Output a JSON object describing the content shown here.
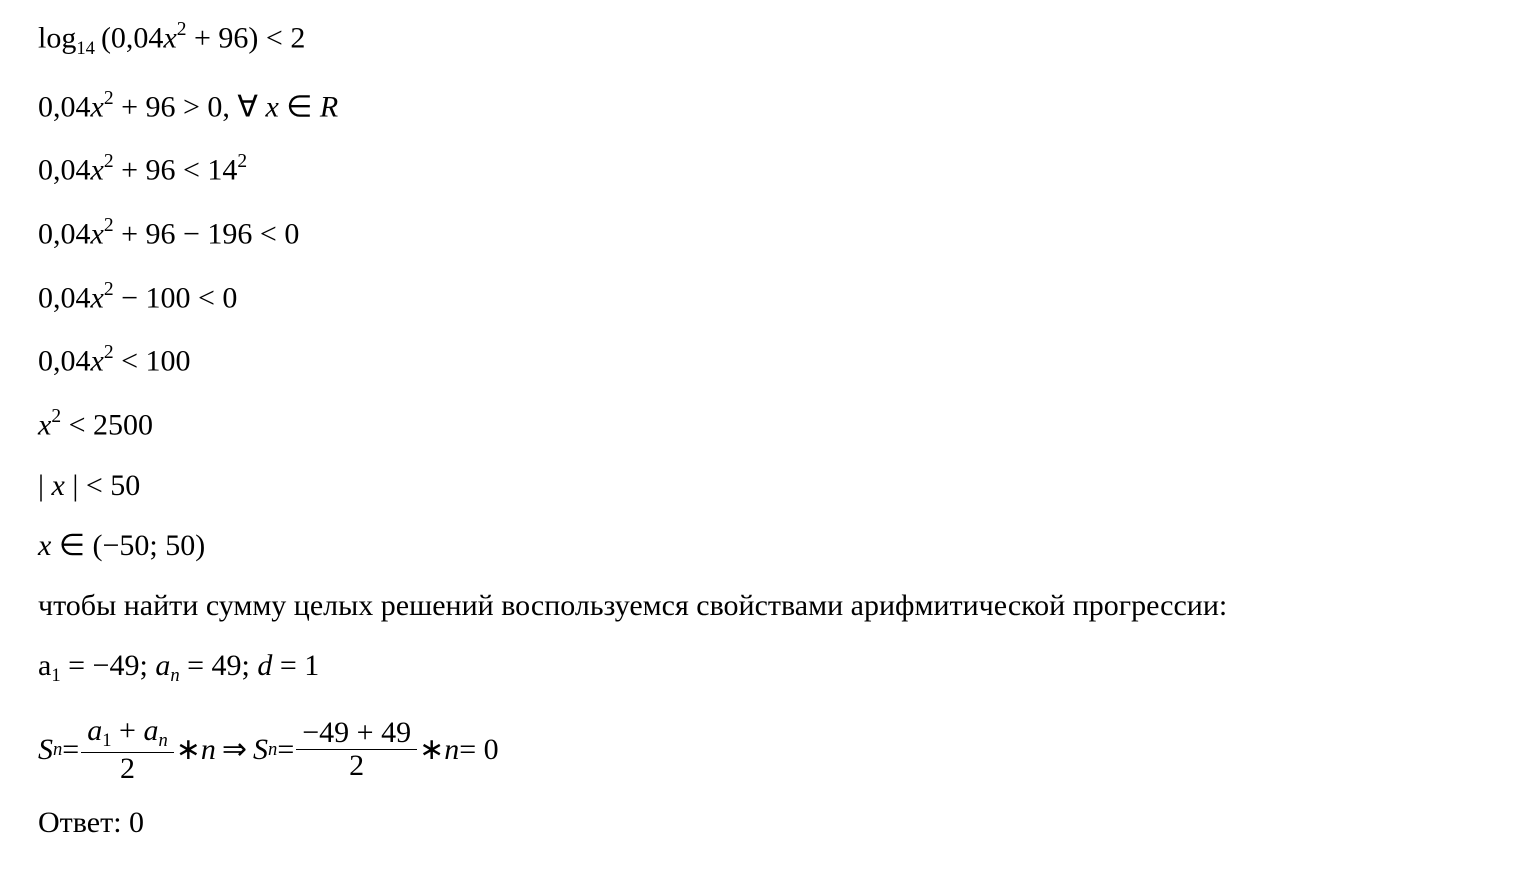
{
  "line1_a": "log",
  "line1_sub": "14",
  "line1_b": "(0,04",
  "x": "x",
  "sq": "2",
  "line1_c": " + 96) < 2",
  "line2_a": "0,04",
  "line2_b": " + 96 > 0,  ∀  ",
  "line2_c": " ∈ ",
  "R": "R",
  "line3_a": "0,04",
  "line3_b": " + 96 < 14",
  "line4_a": "0,04",
  "line4_b": " + 96 − 196 < 0",
  "line5_a": "0,04",
  "line5_b": " − 100 < 0",
  "line6_a": "0,04",
  "line6_b": " < 100",
  "line7_a": " < 2500",
  "line8_a": "| ",
  "line8_b": " | < 50",
  "line9_a": " ∈ (−50; 50)",
  "line10": "чтобы найти сумму целых решений воспользуемся свойствами арифмитической прогрессии:",
  "line11_a": "a",
  "line11_s1": "1",
  "line11_eq": " = −49;   ",
  "line11_a2": "a",
  "line11_sn": "n",
  "line11_eq2": " = 49;    ",
  "line11_d": "d",
  "line11_eq3": " = 1",
  "line12_S": "S",
  "line12_n": "n",
  "line12_eq": " = ",
  "frac1_num_a": "a",
  "frac1_num_1": "1",
  "frac1_num_plus": " + ",
  "frac1_num_an": "a",
  "frac1_num_nn": "n",
  "frac_den2": "2",
  "line12_star": " ∗ ",
  "line12_nn": "n",
  "line12_imp": " ⇒ ",
  "frac2_num": "−49 + 49",
  "line12_end": " = 0",
  "line13": "Ответ: 0",
  "colors": {
    "text": "#000000",
    "bg": "#ffffff"
  },
  "font": {
    "family": "Times New Roman",
    "size_pt": 22
  }
}
